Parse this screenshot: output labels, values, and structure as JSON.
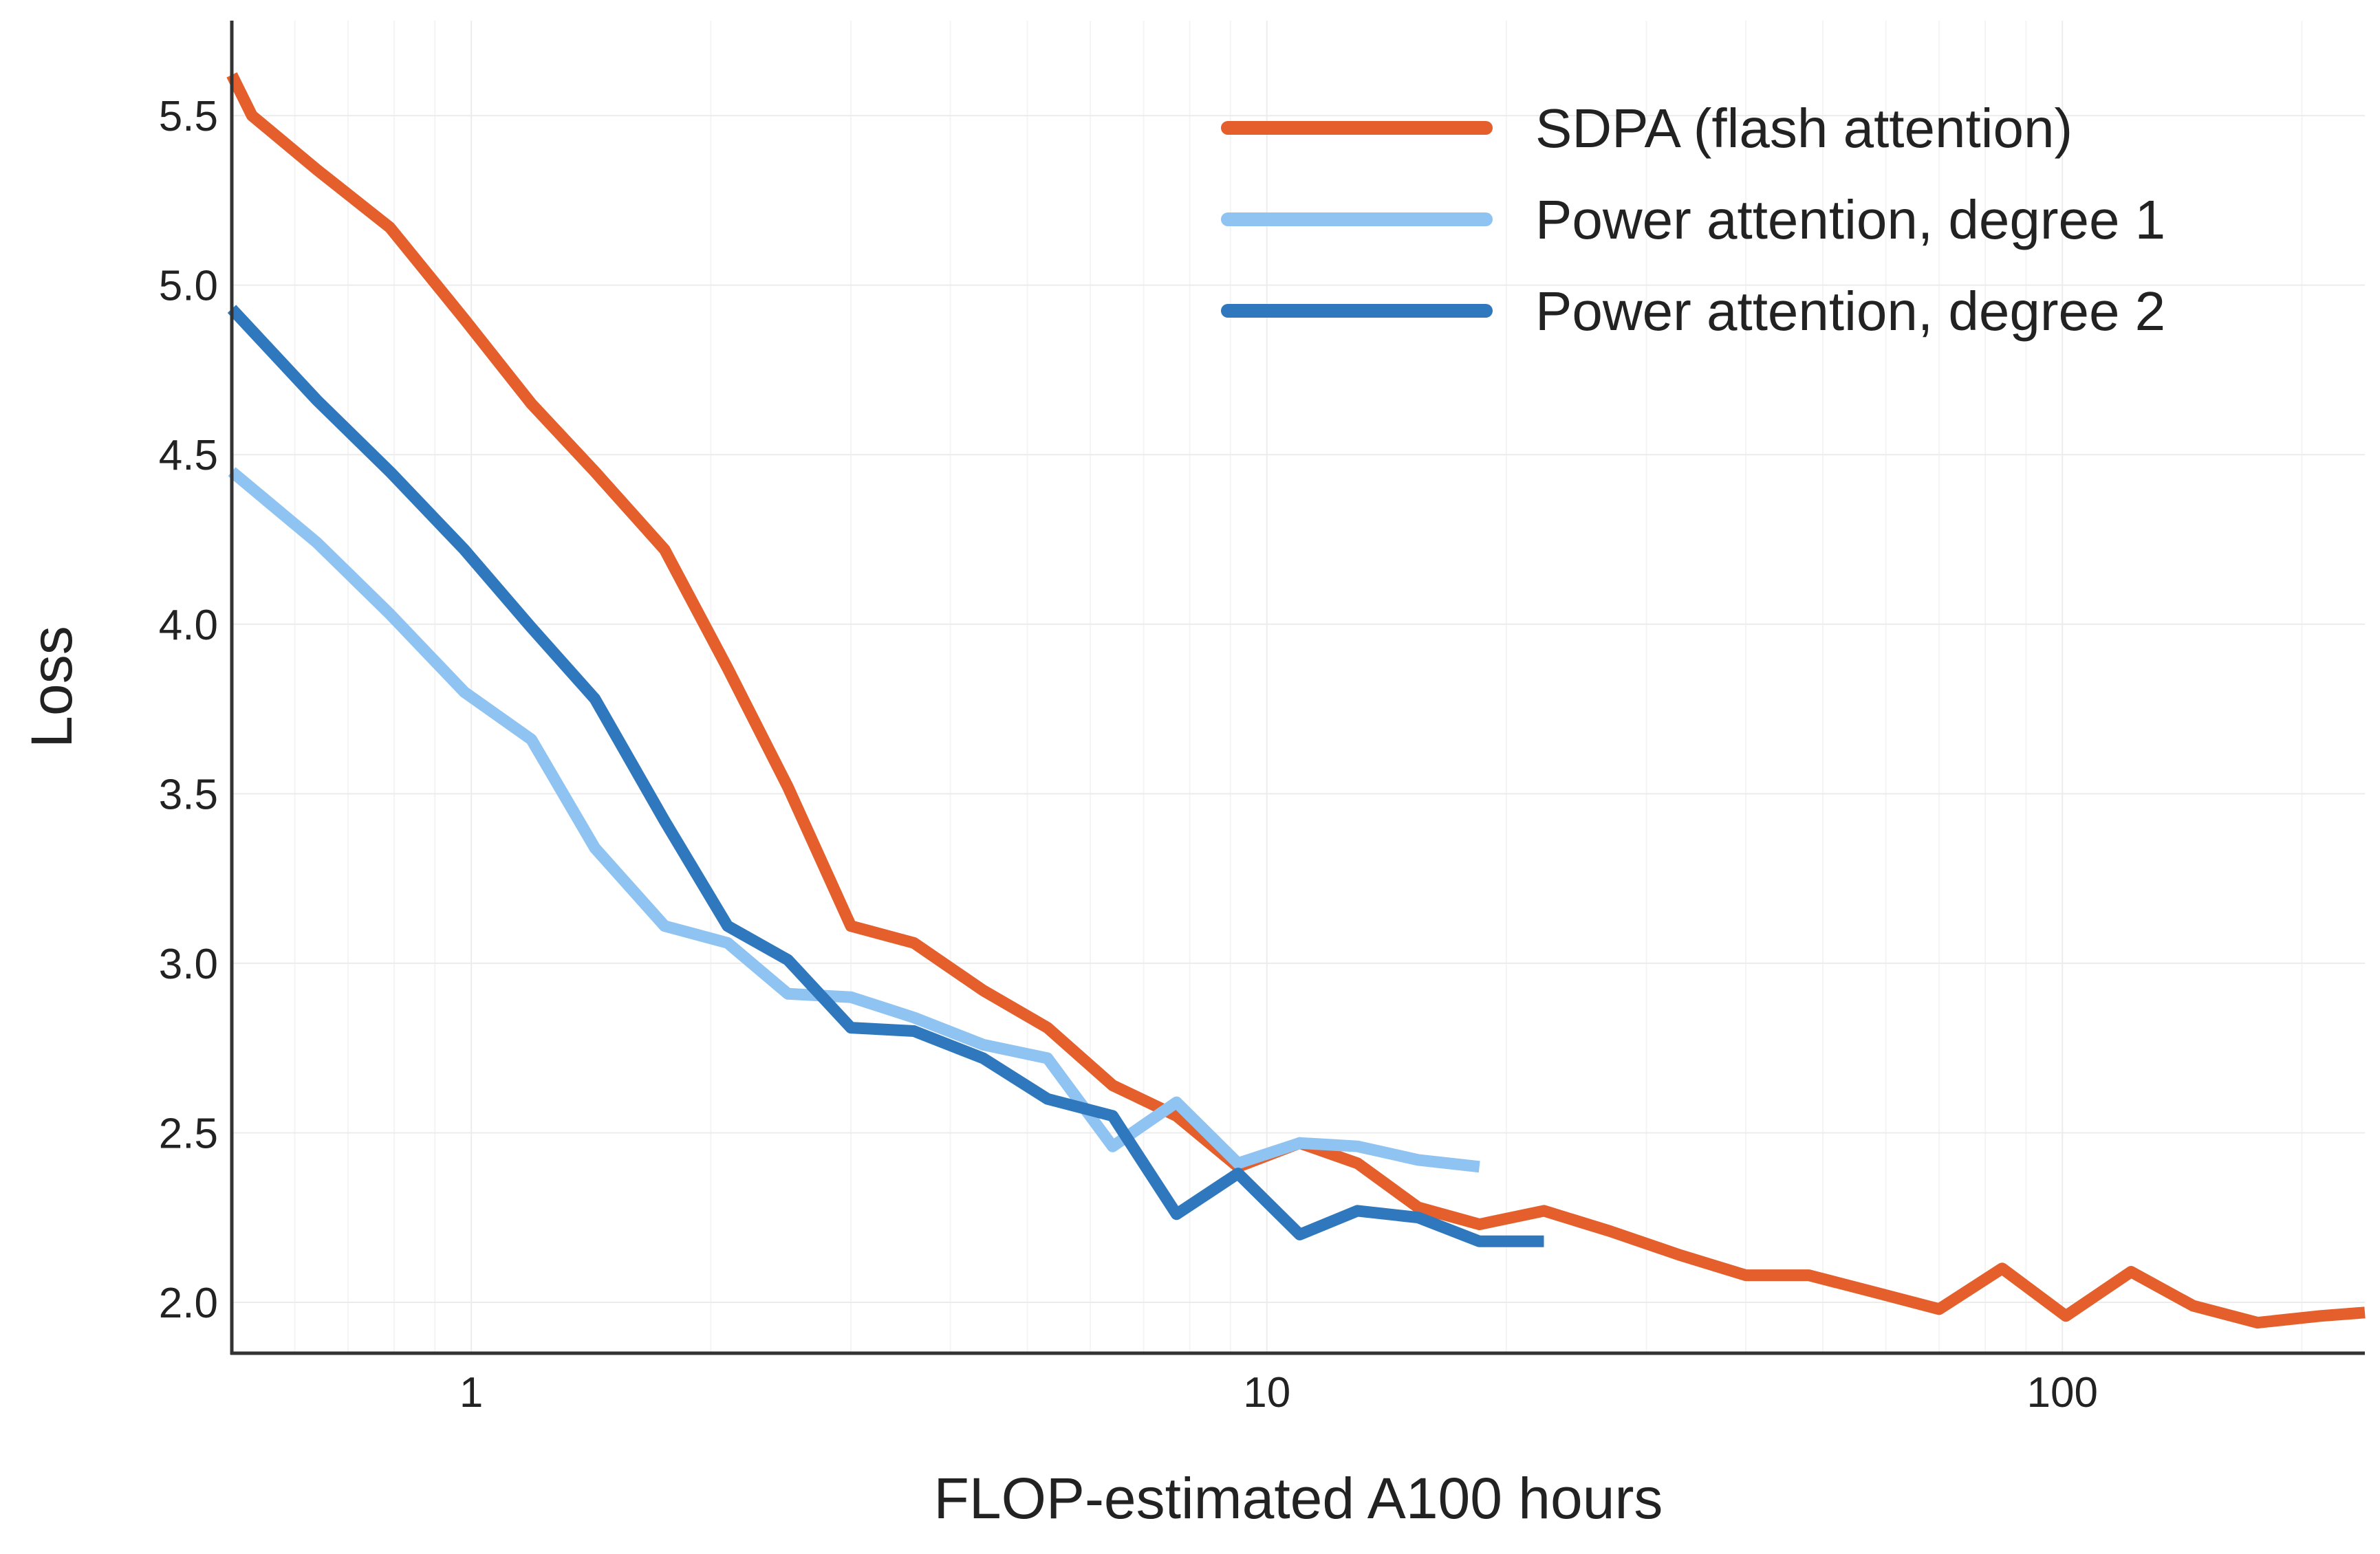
{
  "chart_data": {
    "type": "line",
    "title": "",
    "xlabel": "FLOP-estimated A100 hours",
    "ylabel": "Loss",
    "xscale": "log",
    "xlim": [
      0.5,
      240
    ],
    "ylim": [
      1.85,
      5.78
    ],
    "xticks": [
      {
        "value": 1,
        "label": "1"
      },
      {
        "value": 10,
        "label": "10"
      },
      {
        "value": 100,
        "label": "100"
      }
    ],
    "yticks": [
      {
        "value": 2.0,
        "label": "2.0"
      },
      {
        "value": 2.5,
        "label": "2.5"
      },
      {
        "value": 3.0,
        "label": "3.0"
      },
      {
        "value": 3.5,
        "label": "3.5"
      },
      {
        "value": 4.0,
        "label": "4.0"
      },
      {
        "value": 4.5,
        "label": "4.5"
      },
      {
        "value": 5.0,
        "label": "5.0"
      },
      {
        "value": 5.5,
        "label": "5.5"
      }
    ],
    "grid": true,
    "legend": "top-right",
    "series": [
      {
        "name": "SDPA (flash attention)",
        "color": "#e45f2b",
        "x": [
          0.5,
          0.53,
          0.64,
          0.79,
          0.98,
          1.19,
          1.43,
          1.75,
          2.1,
          2.5,
          3.0,
          3.6,
          4.4,
          5.3,
          6.4,
          7.7,
          9.2,
          11,
          13,
          15.5,
          18.5,
          22.3,
          27,
          33,
          40,
          48,
          58,
          70,
          84,
          101,
          122,
          146,
          176,
          211,
          240
        ],
        "y": [
          5.62,
          5.5,
          5.34,
          5.17,
          4.9,
          4.65,
          4.45,
          4.22,
          3.87,
          3.52,
          3.11,
          3.06,
          2.92,
          2.81,
          2.64,
          2.55,
          2.4,
          2.47,
          2.41,
          2.28,
          2.23,
          2.27,
          2.21,
          2.14,
          2.08,
          2.08,
          2.03,
          1.98,
          2.1,
          1.96,
          2.09,
          1.99,
          1.94,
          1.96,
          1.97
        ]
      },
      {
        "name": "Power attention, degree 1",
        "color": "#8ec3f2",
        "x": [
          0.5,
          0.64,
          0.79,
          0.98,
          1.19,
          1.43,
          1.75,
          2.1,
          2.5,
          3.0,
          3.6,
          4.4,
          5.3,
          6.4,
          7.7,
          9.2,
          11,
          13,
          15.5,
          18.5
        ],
        "y": [
          4.45,
          4.24,
          4.03,
          3.8,
          3.66,
          3.34,
          3.11,
          3.06,
          2.91,
          2.9,
          2.84,
          2.76,
          2.72,
          2.46,
          2.59,
          2.41,
          2.47,
          2.46,
          2.42,
          2.4
        ]
      },
      {
        "name": "Power attention, degree 2",
        "color": "#2f78bd",
        "x": [
          0.5,
          0.64,
          0.79,
          0.98,
          1.19,
          1.43,
          1.75,
          2.1,
          2.5,
          3.0,
          3.6,
          4.4,
          5.3,
          6.4,
          7.7,
          9.2,
          11,
          13,
          15.5,
          18.5,
          22.3
        ],
        "y": [
          4.93,
          4.66,
          4.45,
          4.22,
          3.99,
          3.78,
          3.42,
          3.11,
          3.01,
          2.81,
          2.8,
          2.72,
          2.6,
          2.55,
          2.26,
          2.38,
          2.2,
          2.27,
          2.25,
          2.18,
          2.18
        ]
      }
    ]
  }
}
